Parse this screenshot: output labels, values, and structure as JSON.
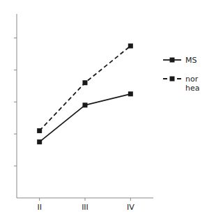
{
  "chart_data": {
    "type": "line",
    "categories": [
      "II",
      "III",
      "IV"
    ],
    "series": [
      {
        "name": "MS",
        "color": "#1a1a1a",
        "marker": "square",
        "line_style": "solid",
        "values": [
          3.5,
          5.8,
          6.5
        ]
      },
      {
        "name": "nor\nhea",
        "color": "#1a1a1a",
        "marker": "square",
        "line_style": "dashed",
        "values": [
          4.2,
          7.2,
          9.5
        ]
      }
    ],
    "ylim": [
      0.0,
      11.5
    ],
    "yticks": [
      2,
      4,
      6,
      8,
      10
    ],
    "tick_labels": "x",
    "grid": false,
    "legend": "right"
  }
}
